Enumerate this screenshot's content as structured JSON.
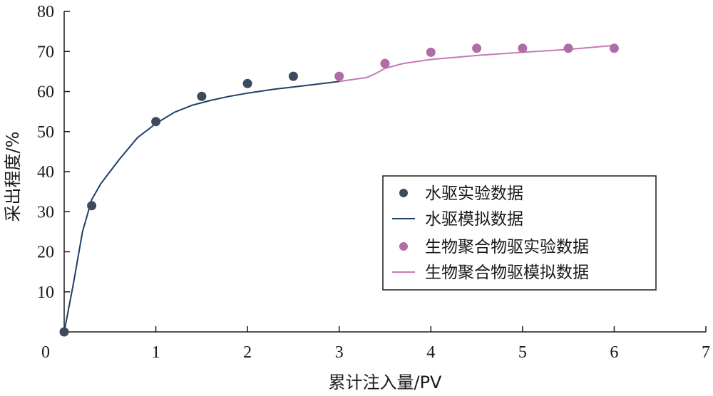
{
  "chart_data": {
    "type": "line",
    "xlabel": "累计注入量/PV",
    "ylabel": "采出程度/%",
    "xlim": [
      0,
      7
    ],
    "ylim": [
      0,
      80
    ],
    "x_ticks": [
      0,
      1,
      2,
      3,
      4,
      5,
      6,
      7
    ],
    "y_ticks": [
      10,
      20,
      30,
      40,
      50,
      60,
      70,
      80
    ],
    "grid": false,
    "legend_position": "lower-right",
    "colors": {
      "water": "#3d4a5c",
      "water_line": "#1f3f66",
      "polymer": "#b06ca6",
      "polymer_line": "#c47bb4"
    },
    "series": [
      {
        "name": "水驱实验数据",
        "kind": "scatter",
        "color": "#3d4a5c",
        "points": [
          [
            0.0,
            0.0
          ],
          [
            0.3,
            31.5
          ],
          [
            1.0,
            52.5
          ],
          [
            1.5,
            58.8
          ],
          [
            2.0,
            62.0
          ],
          [
            2.5,
            63.8
          ]
        ]
      },
      {
        "name": "水驱模拟数据",
        "kind": "line",
        "color": "#1f3f66",
        "points": [
          [
            0.0,
            0.0
          ],
          [
            0.1,
            12.0
          ],
          [
            0.2,
            25.0
          ],
          [
            0.3,
            33.0
          ],
          [
            0.4,
            37.0
          ],
          [
            0.6,
            43.0
          ],
          [
            0.8,
            48.5
          ],
          [
            1.0,
            52.0
          ],
          [
            1.2,
            54.8
          ],
          [
            1.4,
            56.6
          ],
          [
            1.6,
            57.8
          ],
          [
            1.8,
            58.8
          ],
          [
            2.0,
            59.6
          ],
          [
            2.3,
            60.6
          ],
          [
            2.6,
            61.4
          ],
          [
            3.0,
            62.5
          ]
        ]
      },
      {
        "name": "生物聚合物驱实验数据",
        "kind": "scatter",
        "color": "#b06ca6",
        "points": [
          [
            3.0,
            63.8
          ],
          [
            3.5,
            67.0
          ],
          [
            4.0,
            69.8
          ],
          [
            4.5,
            70.8
          ],
          [
            5.0,
            70.8
          ],
          [
            5.5,
            70.8
          ],
          [
            6.0,
            70.8
          ]
        ]
      },
      {
        "name": "生物聚合物驱模拟数据",
        "kind": "line",
        "color": "#c47bb4",
        "points": [
          [
            3.0,
            62.5
          ],
          [
            3.3,
            63.5
          ],
          [
            3.4,
            64.5
          ],
          [
            3.5,
            65.8
          ],
          [
            3.7,
            67.0
          ],
          [
            4.0,
            68.0
          ],
          [
            4.5,
            69.0
          ],
          [
            5.0,
            69.8
          ],
          [
            5.5,
            70.5
          ],
          [
            6.0,
            71.5
          ]
        ]
      }
    ]
  }
}
